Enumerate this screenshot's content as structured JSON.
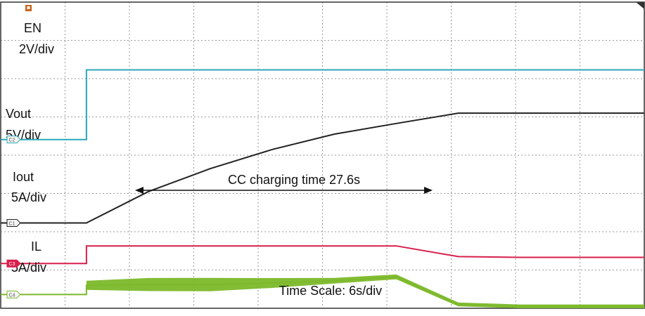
{
  "chart_data": {
    "type": "line",
    "title": "",
    "xlabel": "Time Scale: 6s/div",
    "annotation": "CC charging time 27.6s",
    "x": [
      0,
      6,
      12,
      18,
      24,
      30,
      36,
      42,
      48,
      54
    ],
    "xlim": [
      -8.3,
      54
    ],
    "ylim": [
      0,
      8
    ],
    "grid": true,
    "channels": [
      {
        "id": "C2",
        "name": "EN",
        "scale": "2V/div",
        "color": "#2aa8b8",
        "values": [
          6.23,
          6.23,
          6.23,
          6.23,
          6.23,
          6.23,
          6.23,
          6.23,
          6.23,
          6.23
        ]
      },
      {
        "id": "C1",
        "name": "Vout",
        "scale": "5V/div",
        "color": "#222222",
        "values": [
          2.23,
          3.05,
          3.65,
          4.15,
          4.55,
          4.83,
          5.1,
          5.1,
          5.1,
          5.1
        ]
      },
      {
        "id": "C3",
        "name": "Iout",
        "scale": "5A/div",
        "color": "#d81e4a",
        "values": [
          1.63,
          1.63,
          1.63,
          1.63,
          1.63,
          1.63,
          1.35,
          1.33,
          1.33,
          1.33
        ]
      },
      {
        "id": "C4",
        "name": "IL",
        "scale": "5A/div",
        "color": "#7cb82a",
        "values": [
          0.6,
          0.62,
          0.62,
          0.66,
          0.72,
          0.82,
          0.1,
          0.05,
          0.05,
          0.05
        ]
      }
    ]
  }
}
